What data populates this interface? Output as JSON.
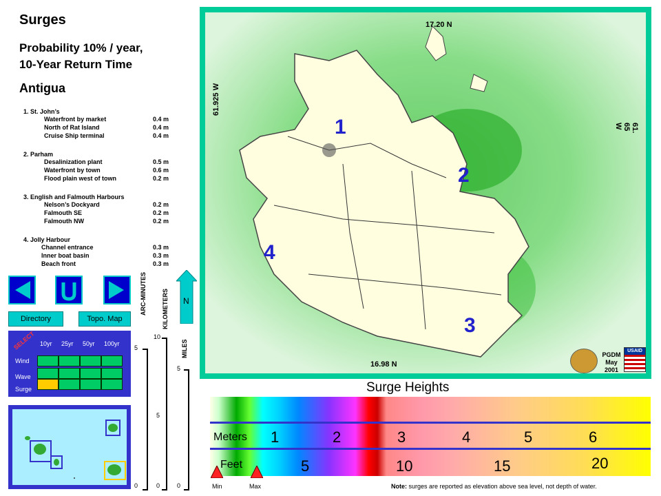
{
  "header": {
    "title": "Surges",
    "subtitle_line1": "Probability 10% / year,",
    "subtitle_line2": "10-Year Return Time",
    "country": "Antigua"
  },
  "locations": [
    {
      "heading": "1. St. John’s",
      "rows": [
        {
          "name": "Waterfront by market",
          "value": "0.4 m"
        },
        {
          "name": "North of Rat Island",
          "value": "0.4 m"
        },
        {
          "name": "Cruise Ship terminal",
          "value": "0.4 m"
        }
      ]
    },
    {
      "heading": "2. Parham",
      "rows": [
        {
          "name": "Desalinization plant",
          "value": "0.5 m"
        },
        {
          "name": "Waterfront by town",
          "value": "0.6 m"
        },
        {
          "name": "Flood plain west of town",
          "value": "0.2 m"
        }
      ]
    },
    {
      "heading": "3. English and Falmouth Harbours",
      "rows": [
        {
          "name": "Nelson’s Dockyard",
          "value": "0.2 m"
        },
        {
          "name": "Falmouth SE",
          "value": "0.2 m"
        },
        {
          "name": "Falmouth NW",
          "value": "0.2 m"
        }
      ]
    },
    {
      "heading": "4. Jolly Harbour",
      "rows": [
        {
          "name": "Channel entrance",
          "value": "0.3 m"
        },
        {
          "name": "Inner boat basin",
          "value": "0.3 m"
        },
        {
          "name": "Beach front",
          "value": "0.3 m"
        }
      ]
    }
  ],
  "nav": {
    "north_label": "N",
    "directory": "Directory",
    "topo_map": "Topo. Map"
  },
  "selector": {
    "select_label": "SELECT",
    "columns": [
      "10yr",
      "25yr",
      "50yr",
      "100yr"
    ],
    "rows": [
      "Wind",
      "Wave",
      "Surge"
    ],
    "selected": {
      "row": "Surge",
      "column": "10yr"
    }
  },
  "scales": {
    "arc_minutes": {
      "label": "ARC-MINUTES",
      "ticks": [
        "5",
        "0"
      ]
    },
    "kilometers": {
      "label": "KILOMETERS",
      "ticks": [
        "10",
        "5",
        "0"
      ]
    },
    "miles": {
      "label": "MILES",
      "ticks": [
        "5",
        "0"
      ]
    }
  },
  "map": {
    "lat_top": "17.20 N",
    "lat_bottom": "16.98 N",
    "lon_left": "61.925 W",
    "lon_right": "61. 65 W",
    "markers": [
      "1",
      "2",
      "3",
      "4"
    ],
    "credit_line1": "PGDM",
    "credit_line2": "May",
    "credit_line3": "2001",
    "usaid": "USAID"
  },
  "legend": {
    "title": "Surge Heights",
    "meters_label": "Meters",
    "feet_label": "Feet",
    "meters_values": [
      "1",
      "2",
      "3",
      "4",
      "5",
      "6"
    ],
    "feet_values": [
      "5",
      "10",
      "15",
      "20"
    ],
    "min_label": "Min",
    "max_label": "Max",
    "note_bold": "Note:",
    "note_text": "surges are reported as elevation above sea level, not depth of water."
  },
  "colors": {
    "panel_blue": "#3333cc",
    "frame_teal": "#00cc99",
    "land": "#ffffe0",
    "selected_cell": "#ffcc00",
    "marker_blue": "#2222cc"
  }
}
